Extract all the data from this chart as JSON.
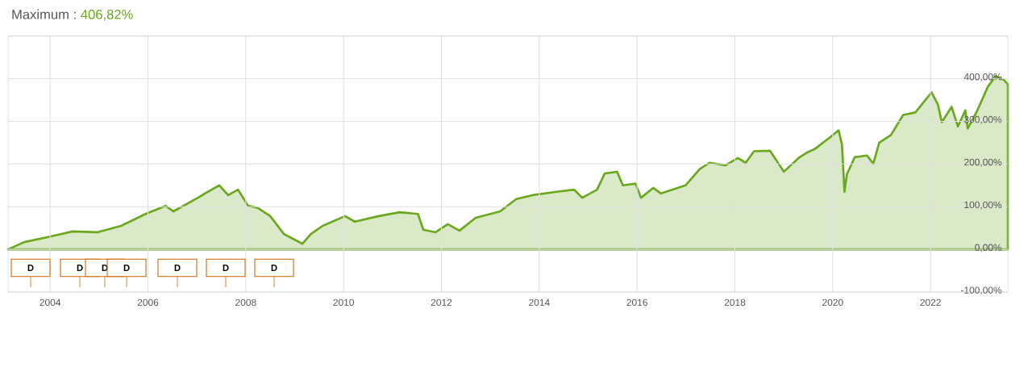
{
  "chart_data": {
    "type": "area",
    "title": "Maximum :",
    "subtitle": "406,82%",
    "x": [
      2003.14,
      2003.47,
      2004.0,
      2004.46,
      2004.96,
      2005.45,
      2005.95,
      2006.36,
      2006.52,
      2007.02,
      2007.3,
      2007.46,
      2007.64,
      2007.84,
      2008.05,
      2008.25,
      2008.5,
      2008.78,
      2009.16,
      2009.33,
      2009.57,
      2010.03,
      2010.23,
      2010.72,
      2011.14,
      2011.52,
      2011.63,
      2011.88,
      2012.13,
      2012.37,
      2012.7,
      2013.2,
      2013.53,
      2013.86,
      2014.35,
      2014.71,
      2014.88,
      2015.18,
      2015.34,
      2015.59,
      2015.71,
      2015.97,
      2016.08,
      2016.33,
      2016.49,
      2016.99,
      2017.28,
      2017.48,
      2017.81,
      2018.06,
      2018.22,
      2018.39,
      2018.72,
      2019.0,
      2019.3,
      2019.46,
      2019.63,
      2019.96,
      2020.12,
      2020.19,
      2020.24,
      2020.29,
      2020.45,
      2020.7,
      2020.83,
      2020.95,
      2021.19,
      2021.44,
      2021.69,
      2022.02,
      2022.15,
      2022.23,
      2022.43,
      2022.56,
      2022.71,
      2022.76,
      2022.95,
      2023.17,
      2023.33,
      2023.5,
      2023.58
    ],
    "series": [
      {
        "color": "#6aa81e",
        "values": [
          0,
          17,
          30,
          42,
          40,
          55,
          83,
          102,
          89,
          121,
          140,
          150,
          127,
          140,
          102,
          97,
          78,
          36,
          13,
          36,
          55,
          78,
          65,
          78,
          87,
          83,
          46,
          40,
          59,
          44,
          74,
          89,
          118,
          127,
          135,
          140,
          121,
          140,
          178,
          182,
          150,
          154,
          121,
          144,
          131,
          150,
          188,
          203,
          197,
          214,
          203,
          230,
          231,
          182,
          214,
          226,
          235,
          264,
          279,
          245,
          135,
          176,
          216,
          220,
          201,
          250,
          268,
          315,
          321,
          368,
          340,
          298,
          334,
          288,
          326,
          283,
          324,
          381,
          406,
          397,
          387
        ]
      }
    ],
    "xlim": [
      2003.14,
      2023.58
    ],
    "ylim": [
      -100,
      500
    ],
    "xticks": [
      2004,
      2006,
      2008,
      2010,
      2012,
      2014,
      2016,
      2018,
      2020,
      2022
    ],
    "yticks": [
      {
        "value": -100,
        "label": "-100,00%"
      },
      {
        "value": 0,
        "label": "0,00%"
      },
      {
        "value": 100,
        "label": "100,00%"
      },
      {
        "value": 200,
        "label": "200,00%"
      },
      {
        "value": 300,
        "label": "300,00%"
      },
      {
        "value": 400,
        "label": "400,00%"
      },
      {
        "value": 500,
        "label": null
      }
    ],
    "grid": true,
    "annotations": [
      "D",
      "D",
      "D",
      "D",
      "D",
      "D",
      "D"
    ]
  }
}
